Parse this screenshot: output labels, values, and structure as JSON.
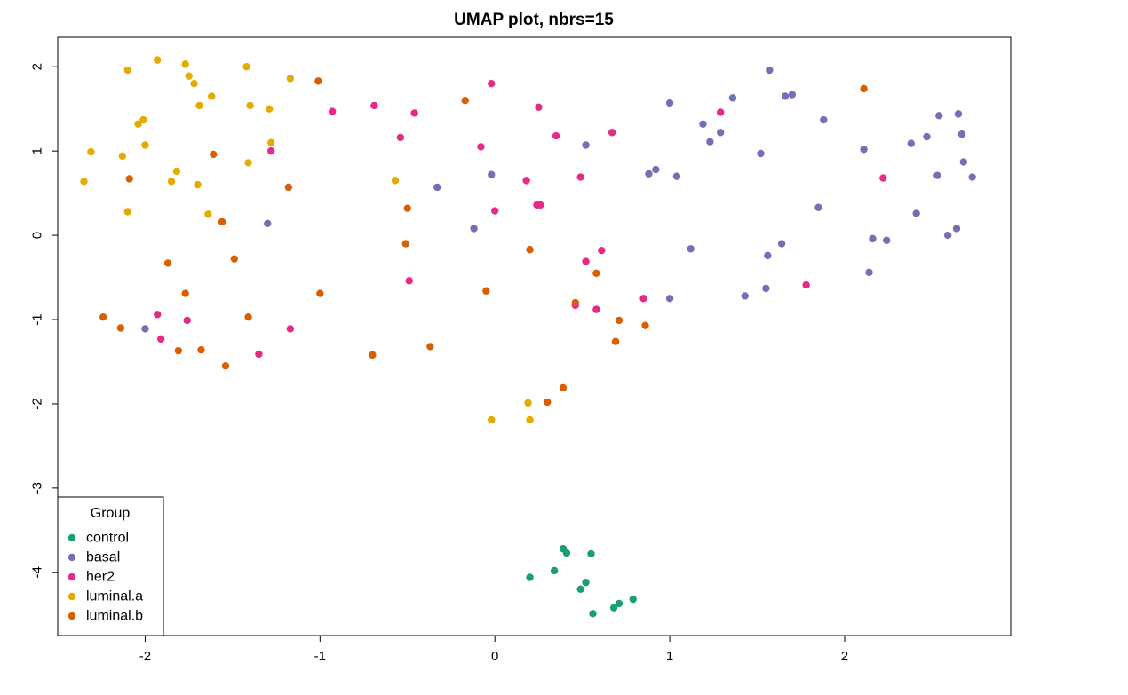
{
  "chart_data": {
    "type": "scatter",
    "title": "UMAP plot, nbrs=15",
    "xlabel": "",
    "ylabel": "",
    "xlim": [
      -2.5,
      2.95
    ],
    "ylim": [
      -4.75,
      2.35
    ],
    "x_ticks": [
      -2,
      -1,
      0,
      1,
      2
    ],
    "y_ticks": [
      -4,
      -3,
      -2,
      -1,
      0,
      1,
      2
    ],
    "x_tick_labels": [
      "-2",
      "-1",
      "0",
      "1",
      "2"
    ],
    "y_tick_labels": [
      "-4",
      "-3",
      "-2",
      "-1",
      "0",
      "1",
      "2"
    ],
    "grid": false,
    "legend": {
      "title": "Group",
      "placement": "bottom-left",
      "entries": [
        "control",
        "basal",
        "her2",
        "luminal.a",
        "luminal.b"
      ]
    },
    "series": [
      {
        "name": "control",
        "color": "#1b9e77",
        "points": [
          [
            0.39,
            -3.72
          ],
          [
            0.41,
            -3.77
          ],
          [
            0.55,
            -3.78
          ],
          [
            0.34,
            -3.98
          ],
          [
            0.2,
            -4.06
          ],
          [
            0.52,
            -4.12
          ],
          [
            0.49,
            -4.2
          ],
          [
            0.79,
            -4.32
          ],
          [
            0.71,
            -4.37
          ],
          [
            0.68,
            -4.42
          ],
          [
            0.56,
            -4.49
          ]
        ]
      },
      {
        "name": "basal",
        "color": "#7570b3",
        "points": [
          [
            1.57,
            1.96
          ],
          [
            1.7,
            1.67
          ],
          [
            1.66,
            1.65
          ],
          [
            1.36,
            1.63
          ],
          [
            1.0,
            1.57
          ],
          [
            2.65,
            1.44
          ],
          [
            2.54,
            1.42
          ],
          [
            1.88,
            1.37
          ],
          [
            1.19,
            1.32
          ],
          [
            1.29,
            1.22
          ],
          [
            2.67,
            1.2
          ],
          [
            2.47,
            1.17
          ],
          [
            1.23,
            1.11
          ],
          [
            2.38,
            1.09
          ],
          [
            0.52,
            1.07
          ],
          [
            2.11,
            1.02
          ],
          [
            1.52,
            0.97
          ],
          [
            2.68,
            0.87
          ],
          [
            0.92,
            0.78
          ],
          [
            0.88,
            0.73
          ],
          [
            -0.02,
            0.72
          ],
          [
            1.04,
            0.7
          ],
          [
            2.53,
            0.71
          ],
          [
            2.73,
            0.69
          ],
          [
            -0.33,
            0.57
          ],
          [
            1.85,
            0.33
          ],
          [
            2.41,
            0.26
          ],
          [
            -1.3,
            0.14
          ],
          [
            -0.12,
            0.08
          ],
          [
            2.64,
            0.08
          ],
          [
            2.59,
            0.0
          ],
          [
            2.16,
            -0.04
          ],
          [
            2.24,
            -0.06
          ],
          [
            1.64,
            -0.1
          ],
          [
            1.12,
            -0.16
          ],
          [
            1.56,
            -0.24
          ],
          [
            2.14,
            -0.44
          ],
          [
            1.55,
            -0.63
          ],
          [
            1.43,
            -0.72
          ],
          [
            1.0,
            -0.75
          ],
          [
            -2.0,
            -1.11
          ]
        ]
      },
      {
        "name": "her2",
        "color": "#e7298a",
        "points": [
          [
            -0.02,
            1.8
          ],
          [
            -0.69,
            1.54
          ],
          [
            0.25,
            1.52
          ],
          [
            -0.93,
            1.47
          ],
          [
            1.29,
            1.46
          ],
          [
            -0.46,
            1.45
          ],
          [
            0.67,
            1.22
          ],
          [
            0.35,
            1.18
          ],
          [
            -0.54,
            1.16
          ],
          [
            -0.08,
            1.05
          ],
          [
            -1.28,
            1.0
          ],
          [
            0.49,
            0.69
          ],
          [
            2.22,
            0.68
          ],
          [
            0.18,
            0.65
          ],
          [
            0.24,
            0.36
          ],
          [
            0.26,
            0.36
          ],
          [
            0.0,
            0.29
          ],
          [
            0.61,
            -0.18
          ],
          [
            0.52,
            -0.31
          ],
          [
            -0.49,
            -0.54
          ],
          [
            1.78,
            -0.59
          ],
          [
            0.85,
            -0.75
          ],
          [
            0.46,
            -0.83
          ],
          [
            0.58,
            -0.88
          ],
          [
            -1.93,
            -0.94
          ],
          [
            -1.76,
            -1.01
          ],
          [
            -1.17,
            -1.11
          ],
          [
            -1.91,
            -1.23
          ],
          [
            -1.35,
            -1.41
          ]
        ]
      },
      {
        "name": "luminal.a",
        "color": "#e6ab02",
        "points": [
          [
            -1.93,
            2.08
          ],
          [
            -1.77,
            2.03
          ],
          [
            -1.42,
            2.0
          ],
          [
            -2.1,
            1.96
          ],
          [
            -1.75,
            1.89
          ],
          [
            -1.17,
            1.86
          ],
          [
            -1.72,
            1.8
          ],
          [
            -1.62,
            1.65
          ],
          [
            -1.69,
            1.54
          ],
          [
            -1.4,
            1.54
          ],
          [
            -1.29,
            1.5
          ],
          [
            -2.01,
            1.37
          ],
          [
            -2.04,
            1.32
          ],
          [
            -1.28,
            1.1
          ],
          [
            -2.0,
            1.07
          ],
          [
            -2.31,
            0.99
          ],
          [
            -2.13,
            0.94
          ],
          [
            -1.41,
            0.86
          ],
          [
            -1.82,
            0.76
          ],
          [
            -2.35,
            0.64
          ],
          [
            -1.85,
            0.64
          ],
          [
            -0.57,
            0.65
          ],
          [
            -1.7,
            0.6
          ],
          [
            -2.1,
            0.28
          ],
          [
            -1.64,
            0.25
          ],
          [
            0.19,
            -1.99
          ],
          [
            -0.02,
            -2.19
          ],
          [
            0.2,
            -2.19
          ]
        ]
      },
      {
        "name": "luminal.b",
        "color": "#d95f02",
        "points": [
          [
            -1.01,
            1.83
          ],
          [
            2.11,
            1.74
          ],
          [
            -0.17,
            1.6
          ],
          [
            -1.61,
            0.96
          ],
          [
            -2.09,
            0.67
          ],
          [
            -1.18,
            0.57
          ],
          [
            -0.5,
            0.32
          ],
          [
            -1.56,
            0.16
          ],
          [
            -0.51,
            -0.1
          ],
          [
            0.2,
            -0.17
          ],
          [
            -1.49,
            -0.28
          ],
          [
            -1.87,
            -0.33
          ],
          [
            0.58,
            -0.45
          ],
          [
            -0.05,
            -0.66
          ],
          [
            -1.77,
            -0.69
          ],
          [
            -1.0,
            -0.69
          ],
          [
            0.46,
            -0.8
          ],
          [
            -2.24,
            -0.97
          ],
          [
            -1.41,
            -0.97
          ],
          [
            0.71,
            -1.01
          ],
          [
            0.86,
            -1.07
          ],
          [
            -2.14,
            -1.1
          ],
          [
            0.69,
            -1.26
          ],
          [
            -0.37,
            -1.32
          ],
          [
            -1.68,
            -1.36
          ],
          [
            -1.81,
            -1.37
          ],
          [
            -0.7,
            -1.42
          ],
          [
            -1.54,
            -1.55
          ],
          [
            0.39,
            -1.81
          ],
          [
            0.3,
            -1.98
          ]
        ]
      }
    ]
  }
}
